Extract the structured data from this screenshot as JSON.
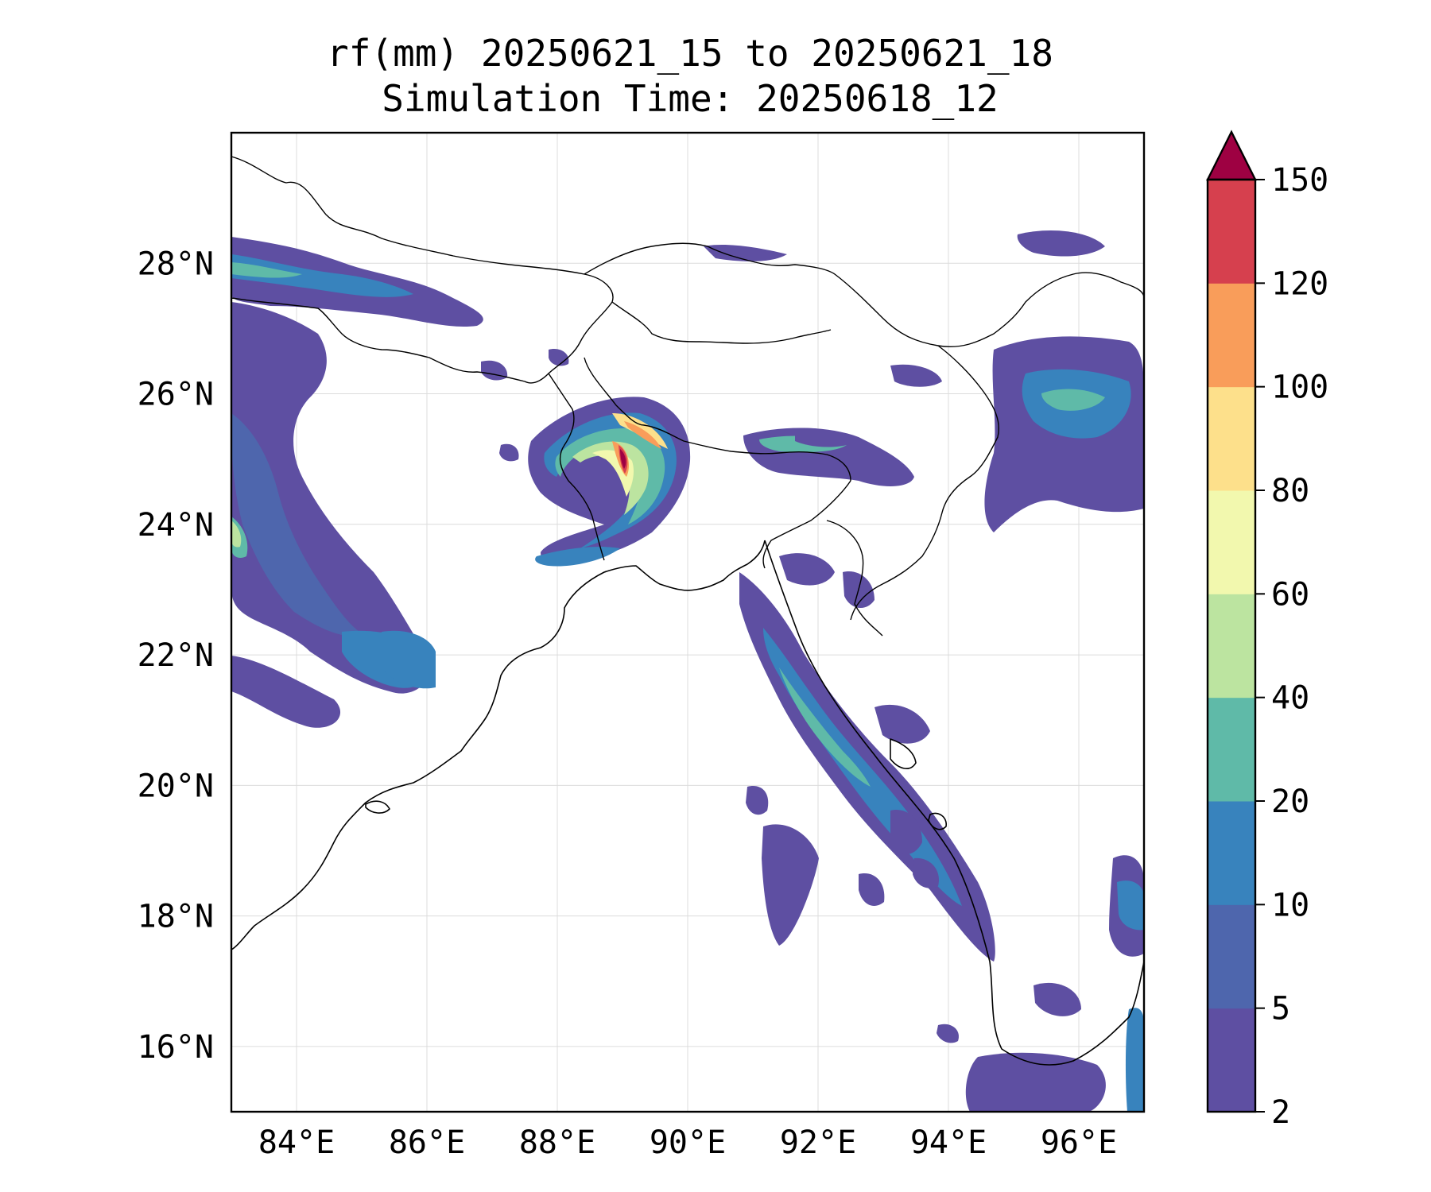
{
  "title": {
    "line1": "rf(mm) 20250621_15 to 20250621_18",
    "line2": "Simulation Time: 20250618_12"
  },
  "map": {
    "extent": {
      "lon": [
        83,
        97
      ],
      "lat": [
        15,
        30
      ]
    },
    "x_ticks": [
      {
        "value": 84,
        "label": "84°E"
      },
      {
        "value": 86,
        "label": "86°E"
      },
      {
        "value": 88,
        "label": "88°E"
      },
      {
        "value": 90,
        "label": "90°E"
      },
      {
        "value": 92,
        "label": "92°E"
      },
      {
        "value": 94,
        "label": "94°E"
      },
      {
        "value": 96,
        "label": "96°E"
      }
    ],
    "y_ticks": [
      {
        "value": 16,
        "label": "16°N"
      },
      {
        "value": 18,
        "label": "18°N"
      },
      {
        "value": 20,
        "label": "20°N"
      },
      {
        "value": 22,
        "label": "22°N"
      },
      {
        "value": 24,
        "label": "24°N"
      },
      {
        "value": 26,
        "label": "26°N"
      },
      {
        "value": 28,
        "label": "28°N"
      }
    ],
    "grid": true
  },
  "colorbar": {
    "levels": [
      "2",
      "5",
      "10",
      "20",
      "40",
      "60",
      "80",
      "100",
      "120",
      "150"
    ],
    "colors": [
      "#5e4fa2",
      "#4e66ad",
      "#3883bd",
      "#5fbaa8",
      "#bce4a0",
      "#f2f8ae",
      "#fde08b",
      "#f99d5a",
      "#d6404e",
      "#9e0142"
    ],
    "extend": "max"
  }
}
